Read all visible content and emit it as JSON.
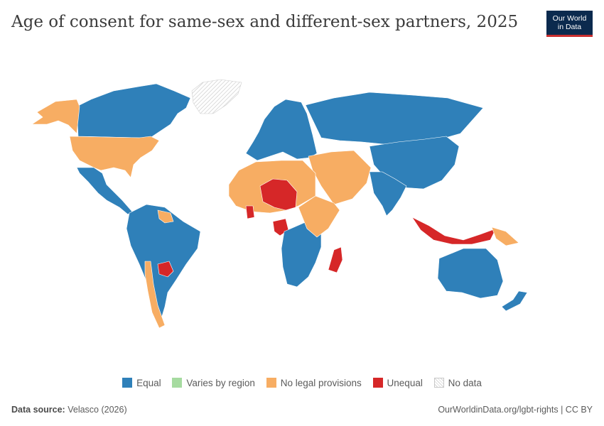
{
  "header": {
    "title": "Age of consent for same-sex and different-sex partners, 2025",
    "logo_line1": "Our World",
    "logo_line2": "in Data"
  },
  "legend": {
    "items": [
      {
        "label": "Equal",
        "color": "#2f80b9"
      },
      {
        "label": "Varies by region",
        "color": "#a6dba0"
      },
      {
        "label": "No legal provisions",
        "color": "#f7ad63"
      },
      {
        "label": "Unequal",
        "color": "#d62728"
      },
      {
        "label": "No data",
        "color": "hatch"
      }
    ]
  },
  "map_regions": [
    {
      "region": "Canada",
      "category": "Equal"
    },
    {
      "region": "Alaska",
      "category": "No legal provisions"
    },
    {
      "region": "United States",
      "category": "No legal provisions"
    },
    {
      "region": "Greenland",
      "category": "No data"
    },
    {
      "region": "Mexico and Central America",
      "category": "Equal"
    },
    {
      "region": "South America",
      "category": "Equal"
    },
    {
      "region": "Paraguay",
      "category": "Unequal"
    },
    {
      "region": "Chile",
      "category": "No legal provisions"
    },
    {
      "region": "Guyana and Suriname",
      "category": "No legal provisions"
    },
    {
      "region": "Europe",
      "category": "Equal"
    },
    {
      "region": "Russia",
      "category": "Equal"
    },
    {
      "region": "Middle East",
      "category": "No legal provisions"
    },
    {
      "region": "North Africa",
      "category": "No legal provisions"
    },
    {
      "region": "Niger and Chad",
      "category": "Unequal"
    },
    {
      "region": "Ghana",
      "category": "Unequal"
    },
    {
      "region": "Gabon",
      "category": "Unequal"
    },
    {
      "region": "Madagascar",
      "category": "Unequal"
    },
    {
      "region": "Southern Africa",
      "category": "Equal"
    },
    {
      "region": "East Africa",
      "category": "No legal provisions"
    },
    {
      "region": "China",
      "category": "Equal"
    },
    {
      "region": "India",
      "category": "Equal"
    },
    {
      "region": "Indonesia",
      "category": "Unequal"
    },
    {
      "region": "Papua New Guinea",
      "category": "No legal provisions"
    },
    {
      "region": "Australia",
      "category": "Equal"
    },
    {
      "region": "New Zealand",
      "category": "Equal"
    }
  ],
  "footer": {
    "source_label": "Data source:",
    "source_value": "Velasco (2026)",
    "url": "OurWorldinData.org/lgbt-rights | CC BY"
  },
  "colors": {
    "equal": "#2f80b9",
    "varies": "#a6dba0",
    "none": "#f7ad63",
    "unequal": "#d62728",
    "nodata": "#e4e4e4"
  }
}
